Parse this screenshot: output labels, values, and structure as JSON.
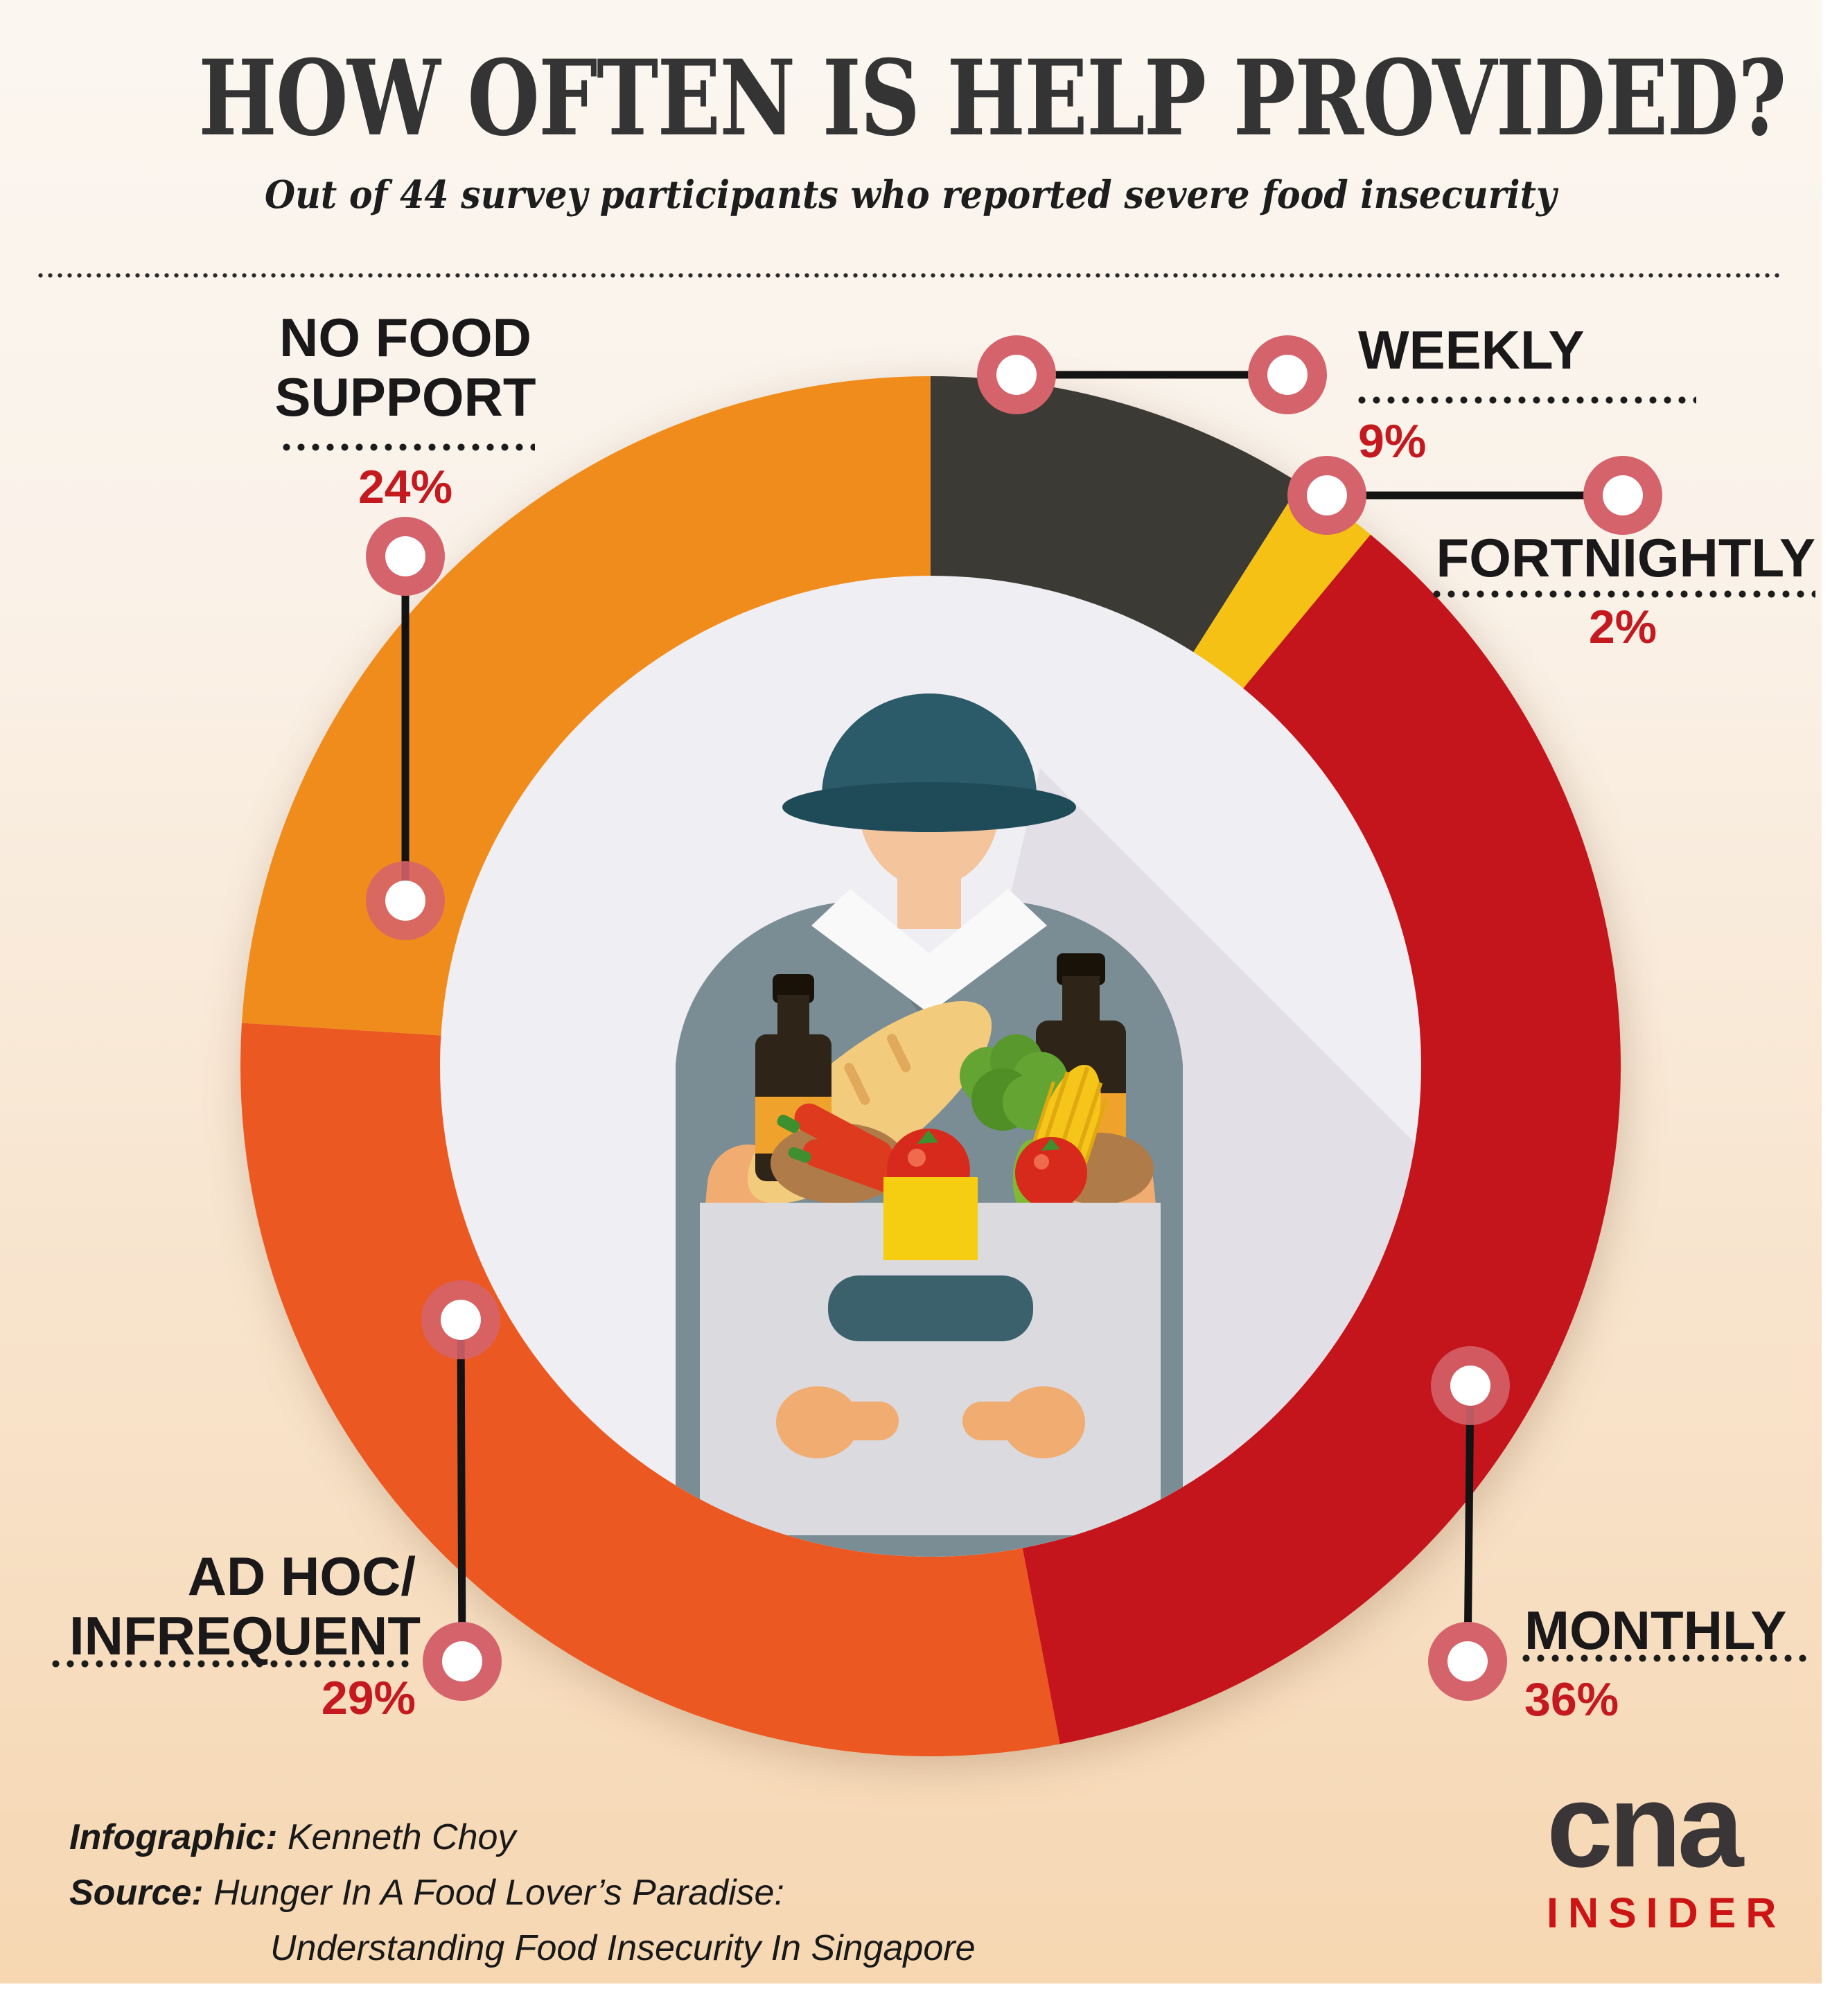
{
  "title": "HOW OFTEN IS HELP PROVIDED?",
  "subtitle": "Out of 44 survey participants who reported severe food insecurity",
  "chart_data": {
    "type": "pie",
    "subtype": "donut",
    "title": "HOW OFTEN IS HELP PROVIDED?",
    "description": "Frequency of food help received, out of 44 survey participants who reported severe food insecurity",
    "categories": [
      "Weekly",
      "Fortnightly",
      "Monthly",
      "Ad Hoc/Infrequent",
      "No Food Support"
    ],
    "values": [
      9,
      2,
      36,
      29,
      24
    ],
    "unit": "%",
    "colors": [
      "#3b3a34",
      "#f5c115",
      "#c4151c",
      "#ec5822",
      "#f08c1c"
    ],
    "start_angle_deg": 0,
    "direction": "clockwise",
    "inner_radius_ratio": 0.71,
    "legend_position": "around-chart-callouts",
    "center_illustration": "man in cap holding box of groceries"
  },
  "labels": {
    "no_food_support": {
      "line1": "NO FOOD",
      "line2": "SUPPORT",
      "pct": "24%"
    },
    "weekly": {
      "line1": "WEEKLY",
      "pct": "9%"
    },
    "fortnightly": {
      "line1": "FORTNIGHTLY",
      "pct": "2%"
    },
    "monthly": {
      "line1": "MONTHLY",
      "pct": "36%"
    },
    "ad_hoc": {
      "line1": "AD HOC/",
      "line2": "INFREQUENT",
      "pct": "29%"
    }
  },
  "footer": {
    "infographic_label": "Infographic:",
    "infographic_credit": "Kenneth Choy",
    "source_label": "Source:",
    "source_line1": "Hunger In A Food Lover’s Paradise:",
    "source_line2": "Understanding Food Insecurity In Singapore"
  },
  "logo": {
    "brand": "cna",
    "sub": "INSIDER"
  },
  "colors": {
    "accent_red": "#c3191f",
    "marker_rose": "#d5636b",
    "background_top": "#fbf6f0",
    "background_bottom": "#f6d7b2",
    "text_dark": "#1a1819"
  }
}
